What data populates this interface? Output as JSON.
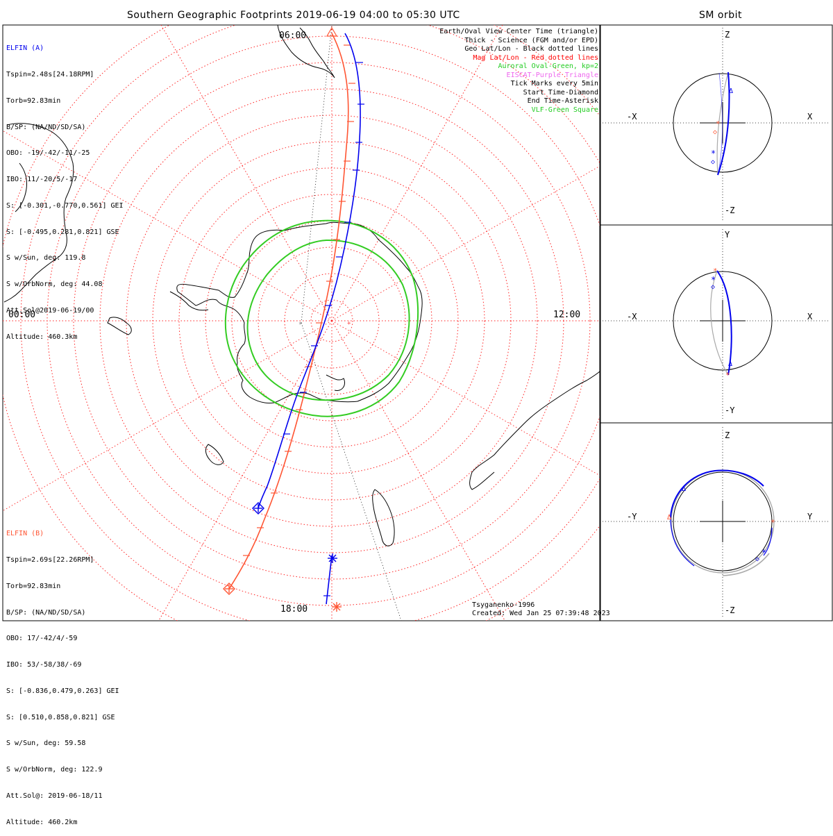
{
  "main_title": "Southern Geographic Footprints 2019-06-19 04:00 to 05:30 UTC",
  "side_title": "SM orbit",
  "time_labels": {
    "top": "06:00",
    "left": "00:00",
    "right": "12:00",
    "bottom": "18:00"
  },
  "elfin_a": {
    "header": "ELFIN (A)",
    "lines": [
      "Tspin=2.48s[24.18RPM]",
      "Torb=92.83min",
      "B/SP: (NA/ND/SD/SA)",
      "OBO: -19/-42/-11/-25",
      "IBO: 11/-20/5/-17",
      "S: [-0.301,-0.770,0.561] GEI",
      "S: [-0.495,0.281,0.821] GSE",
      "S w/Sun, deg: 119.8",
      "S w/OrbNorm, deg: 44.08",
      "Att.Sol@2019-06-19/00",
      "Altitude: 460.3km"
    ]
  },
  "elfin_b": {
    "header": "ELFIN (B)",
    "lines": [
      "Tspin=2.69s[22.26RPM]",
      "Torb=92.83min",
      "B/SP: (NA/ND/SD/SA)",
      "OBO: 17/-42/4/-59",
      "IBO: 53/-58/38/-69",
      "S: [-0.836,0.479,0.263] GEI",
      "S: [0.510,0.858,0.821] GSE",
      "S w/Sun, deg: 59.58",
      "S w/OrbNorm, deg: 122.9",
      "Att.Sol@: 2019-06-18/11",
      "Altitude: 460.2km"
    ]
  },
  "legend": [
    {
      "text": "Earth/Oval View Center Time (triangle)",
      "color": "#000000"
    },
    {
      "text": "Thick - Science (FGM and/or EPD)",
      "color": "#000000"
    },
    {
      "text": "Geo Lat/Lon - Black dotted lines",
      "color": "#000000"
    },
    {
      "text": "Mag Lat/Lon - Red dotted lines",
      "color": "#ff0000"
    },
    {
      "text": "Auroral Oval-Green, kp=2",
      "color": "#22cc22"
    },
    {
      "text": "EISCAT-Purple Triangle",
      "color": "#ee66ee"
    },
    {
      "text": "Tick Marks every 5min",
      "color": "#000000"
    },
    {
      "text": "Start Time-Diamond",
      "color": "#000000"
    },
    {
      "text": "End Time-Asterisk",
      "color": "#000000"
    },
    {
      "text": "VLF-Green Square",
      "color": "#22cc22"
    }
  ],
  "credits": {
    "model": "Tsyganenko-1996",
    "created": "Created: Wed Jan 25 07:39:48 2023"
  },
  "panels": {
    "xz": {
      "top": "Z",
      "bottom": "-Z",
      "left": "-X",
      "right": "X"
    },
    "xy": {
      "top": "Y",
      "bottom": "-Y",
      "left": "-X",
      "right": "X"
    },
    "yz": {
      "top": "Z",
      "bottom": "-Z",
      "left": "-Y",
      "right": "Y"
    }
  },
  "colors": {
    "elfin_a": "#0000ee",
    "elfin_b": "#ff5533",
    "mag_grid": "#ff2222",
    "auroral_oval": "#33cc22",
    "sm_track_gray": "#aaaaaa"
  }
}
